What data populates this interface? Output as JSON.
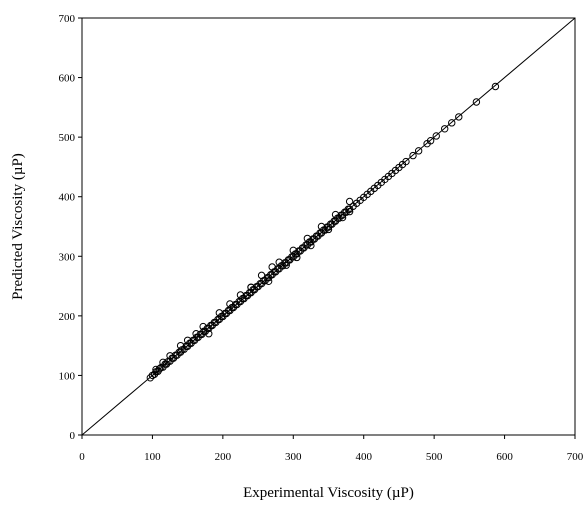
{
  "chart_data": {
    "type": "scatter",
    "title": "",
    "xlabel": "Experimental Viscosity (µP)",
    "ylabel": "Predicted Viscosity (µP)",
    "xlim": [
      0,
      700
    ],
    "ylim": [
      0,
      700
    ],
    "xticks": [
      "0",
      "100",
      "200",
      "300",
      "400",
      "500",
      "600",
      "700"
    ],
    "yticks": [
      "0",
      "100",
      "200",
      "300",
      "400",
      "500",
      "600",
      "700"
    ],
    "grid": false,
    "legend": "none",
    "reference_line": {
      "x": [
        0,
        700
      ],
      "y": [
        0,
        700
      ]
    },
    "series": [
      {
        "marker": "open-circle",
        "color": "#000000",
        "x": [
          97,
          100,
          103,
          105,
          108,
          110,
          112,
          115,
          118,
          120,
          122,
          125,
          128,
          130,
          133,
          135,
          138,
          140,
          142,
          145,
          148,
          150,
          153,
          155,
          158,
          160,
          163,
          165,
          168,
          170,
          173,
          175,
          178,
          180,
          183,
          185,
          188,
          190,
          193,
          195,
          198,
          200,
          203,
          205,
          208,
          210,
          213,
          215,
          218,
          220,
          223,
          225,
          228,
          230,
          233,
          235,
          238,
          240,
          243,
          245,
          248,
          250,
          253,
          255,
          258,
          260,
          263,
          265,
          268,
          270,
          273,
          275,
          278,
          280,
          283,
          285,
          288,
          290,
          293,
          295,
          298,
          300,
          303,
          305,
          308,
          310,
          313,
          315,
          318,
          320,
          323,
          325,
          328,
          330,
          333,
          335,
          338,
          340,
          343,
          345,
          348,
          350,
          353,
          355,
          358,
          360,
          363,
          365,
          368,
          370,
          373,
          375,
          378,
          380,
          385,
          390,
          395,
          400,
          405,
          410,
          415,
          420,
          425,
          430,
          435,
          440,
          445,
          450,
          455,
          460,
          470,
          478,
          490,
          495,
          503,
          515,
          525,
          535,
          560,
          587,
          105,
          115,
          125,
          140,
          150,
          162,
          172,
          180,
          195,
          210,
          225,
          240,
          255,
          270,
          280,
          300,
          320,
          340,
          360,
          380,
          240,
          265,
          290,
          305,
          325,
          350,
          370,
          380
        ],
        "y": [
          96,
          100,
          102,
          106,
          107,
          111,
          113,
          114,
          119,
          119,
          123,
          124,
          129,
          129,
          134,
          134,
          139,
          139,
          143,
          144,
          149,
          149,
          154,
          154,
          159,
          159,
          164,
          164,
          169,
          169,
          174,
          174,
          179,
          179,
          184,
          184,
          189,
          189,
          194,
          194,
          199,
          199,
          204,
          204,
          209,
          209,
          214,
          214,
          219,
          219,
          224,
          224,
          229,
          229,
          234,
          234,
          239,
          239,
          244,
          244,
          249,
          249,
          254,
          254,
          259,
          259,
          264,
          264,
          269,
          269,
          274,
          274,
          279,
          279,
          284,
          284,
          289,
          289,
          294,
          294,
          299,
          299,
          304,
          304,
          309,
          309,
          314,
          314,
          319,
          319,
          324,
          324,
          329,
          329,
          334,
          334,
          339,
          339,
          344,
          344,
          349,
          349,
          354,
          354,
          359,
          359,
          364,
          364,
          369,
          369,
          374,
          374,
          379,
          379,
          384,
          389,
          394,
          399,
          404,
          409,
          414,
          419,
          424,
          429,
          434,
          439,
          444,
          449,
          454,
          459,
          469,
          477,
          489,
          494,
          502,
          514,
          524,
          534,
          559,
          585,
          110,
          122,
          133,
          150,
          159,
          170,
          182,
          170,
          205,
          220,
          235,
          248,
          268,
          282,
          290,
          310,
          330,
          350,
          370,
          392,
          248,
          258,
          285,
          298,
          318,
          345,
          365,
          375
        ]
      }
    ]
  }
}
